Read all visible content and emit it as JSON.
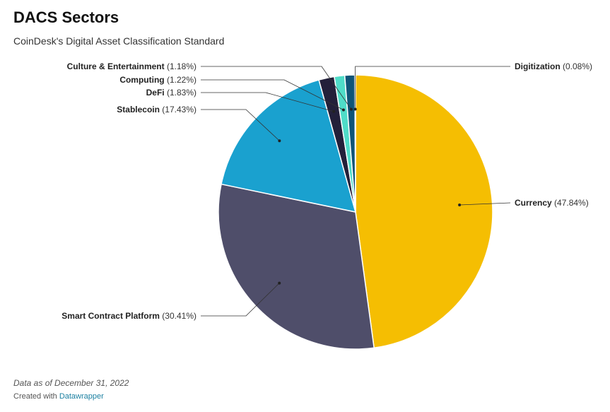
{
  "title": "DACS Sectors",
  "subtitle": "CoinDesk's Digital Asset Classification Standard",
  "note": "Data as of December 31, 2022",
  "credit": {
    "prefix": "Created with ",
    "link": "Datawrapper"
  },
  "chart_data": {
    "type": "pie",
    "slices": [
      {
        "name": "Currency",
        "value": 47.84,
        "color": "#f5be02"
      },
      {
        "name": "Smart Contract Platform",
        "value": 30.41,
        "color": "#4f4e6a"
      },
      {
        "name": "Stablecoin",
        "value": 17.43,
        "color": "#1aa1cf"
      },
      {
        "name": "DeFi",
        "value": 1.83,
        "color": "#23203a"
      },
      {
        "name": "Computing",
        "value": 1.22,
        "color": "#4fdcc8"
      },
      {
        "name": "Culture & Entertainment",
        "value": 1.18,
        "color": "#0f5477"
      },
      {
        "name": "Digitization",
        "value": 0.08,
        "color": "#2c3e50"
      }
    ]
  }
}
